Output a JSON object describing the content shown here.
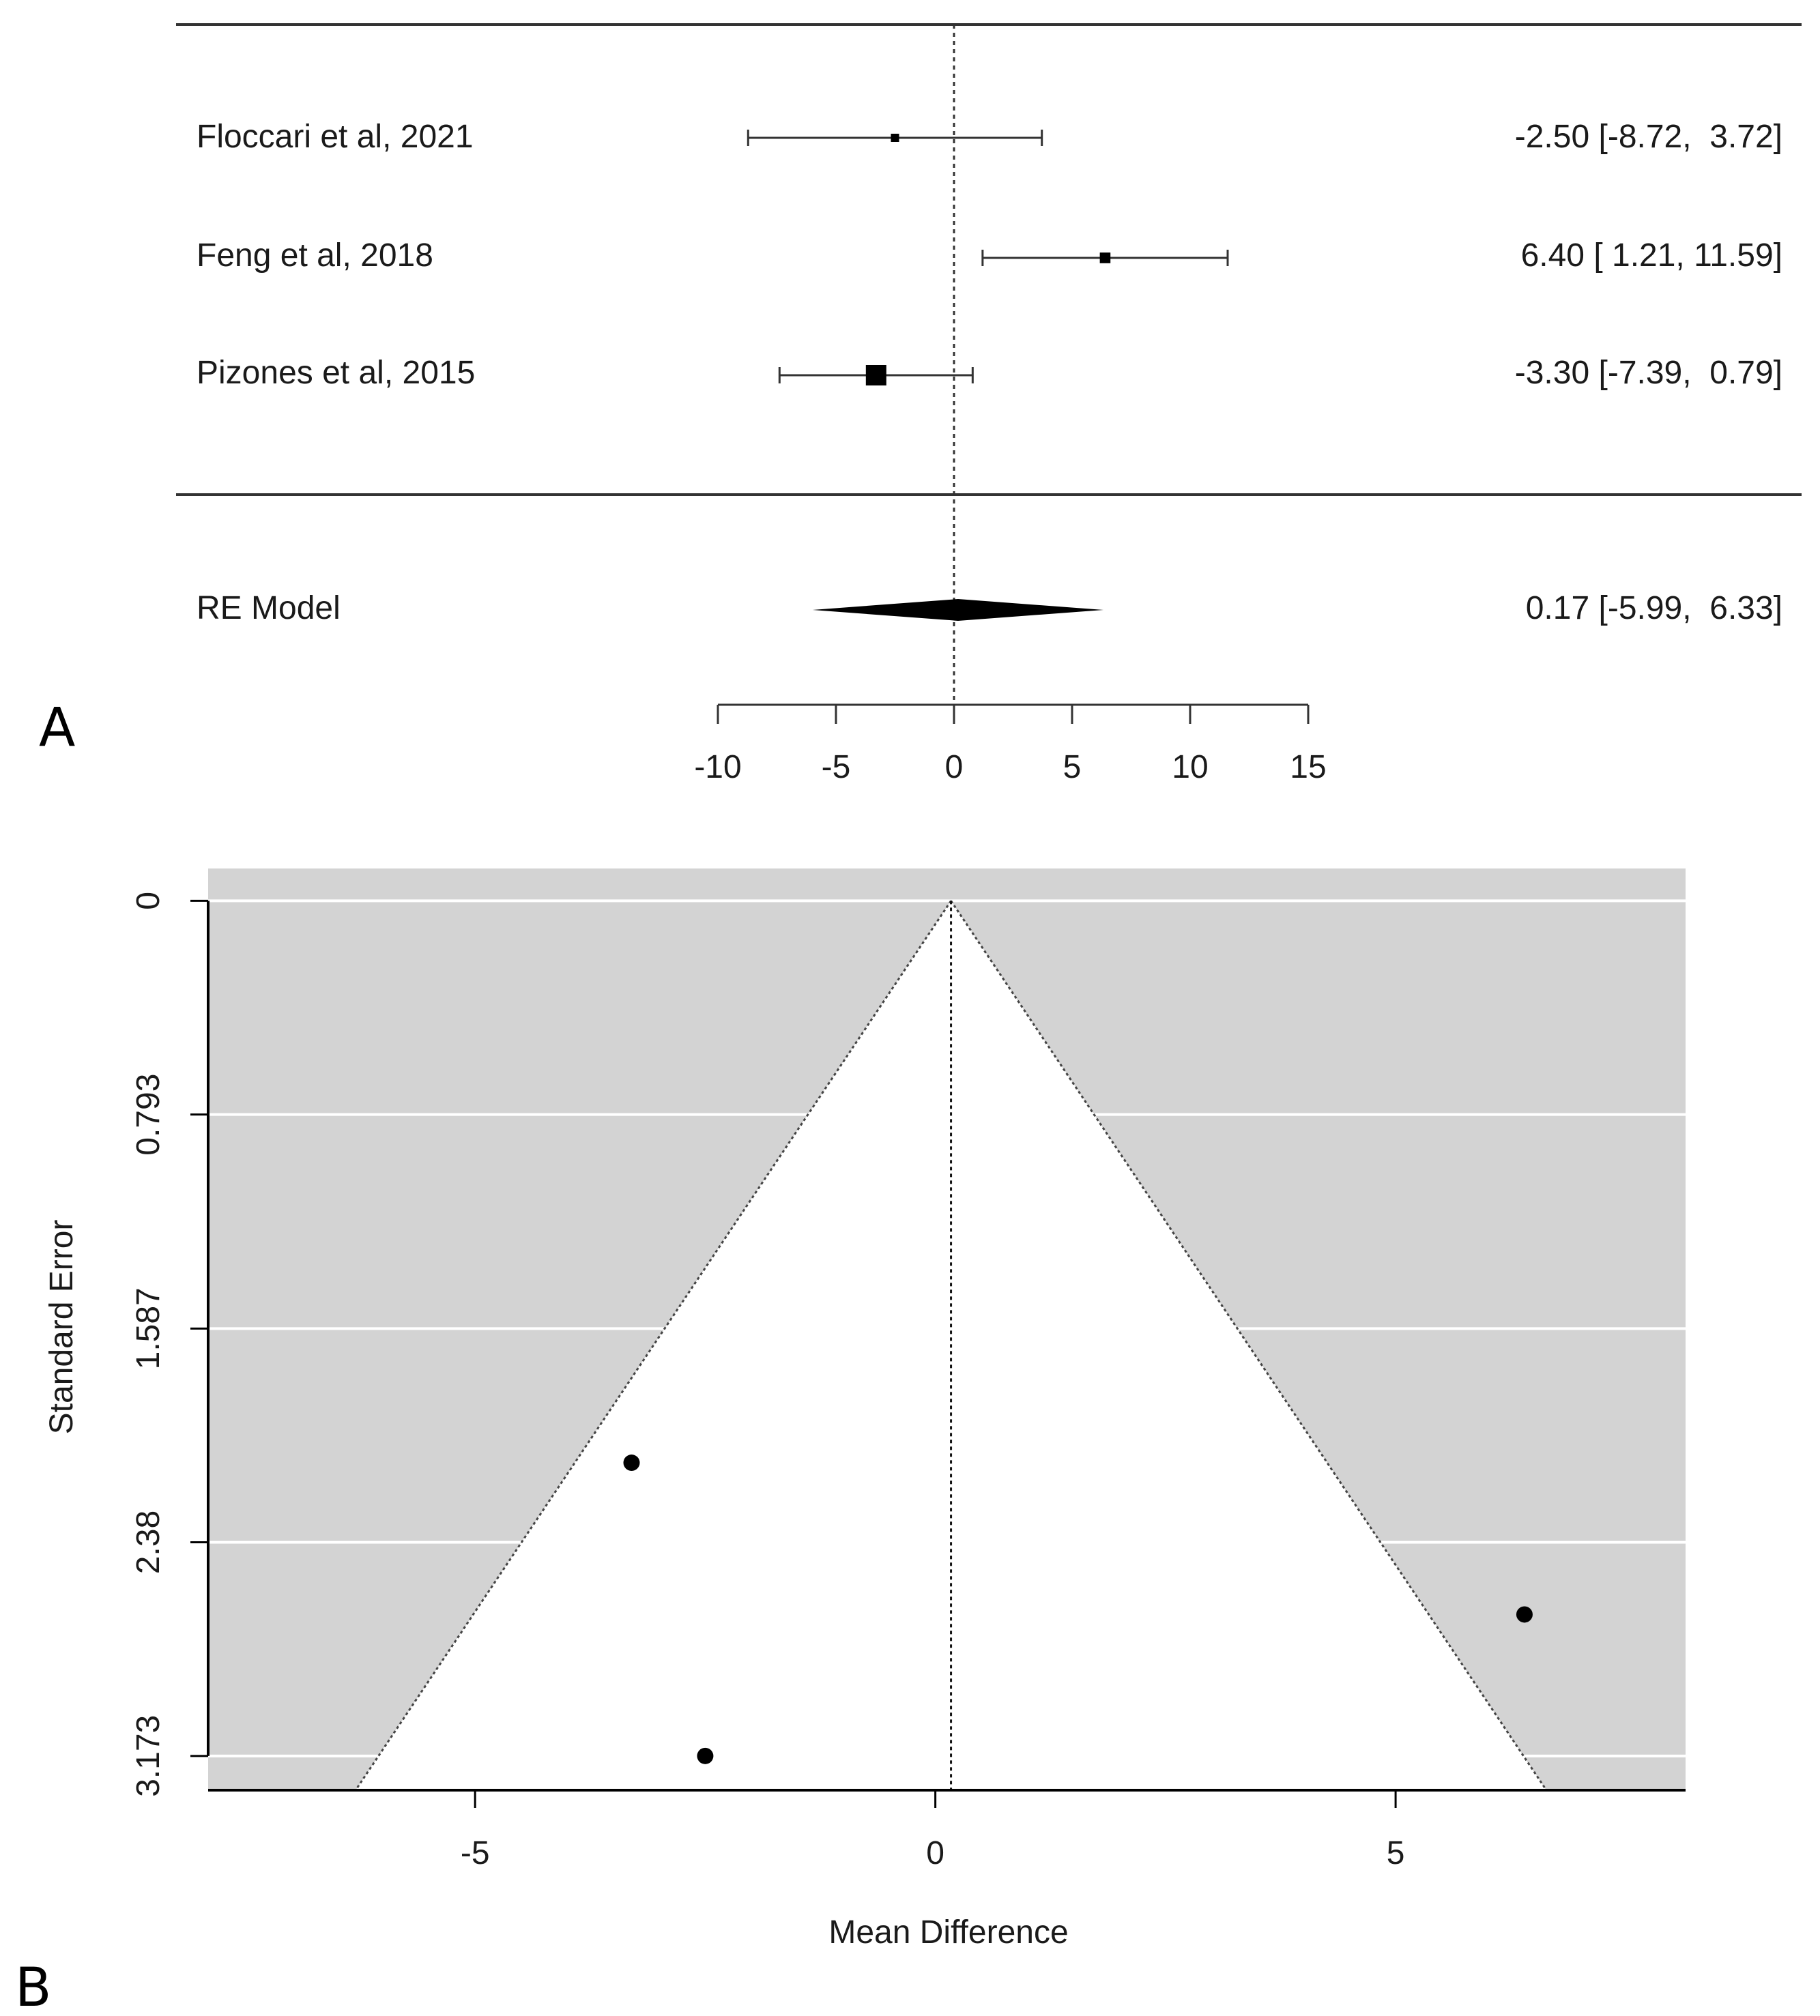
{
  "panels": {
    "a_label": "A",
    "b_label": "B"
  },
  "chart_data": [
    {
      "type": "forest",
      "panel": "A",
      "studies": [
        {
          "label": "Floccari et al, 2021",
          "estimate": -2.5,
          "lower": -8.72,
          "upper": 3.72,
          "ci_text": "-2.50 [-8.72,  3.72]",
          "weight": 1
        },
        {
          "label": "Feng et al, 2018",
          "estimate": 6.4,
          "lower": 1.21,
          "upper": 11.59,
          "ci_text": "6.40 [ 1.21, 11.59]",
          "weight": 1.3
        },
        {
          "label": "Pizones et al, 2015",
          "estimate": -3.3,
          "lower": -7.39,
          "upper": 0.79,
          "ci_text": "-3.30 [-7.39,  0.79]",
          "weight": 2.5
        }
      ],
      "summary": {
        "label": "RE Model",
        "estimate": 0.17,
        "lower": -5.99,
        "upper": 6.33,
        "ci_text": "0.17 [-5.99,  6.33]"
      },
      "xlim": [
        -10,
        15
      ],
      "ticks": [
        -10,
        -5,
        0,
        5,
        10,
        15
      ],
      "tick_labels": [
        "-10",
        "-5",
        "0",
        "5",
        "10",
        "15"
      ],
      "reference_line": 0
    },
    {
      "type": "scatter",
      "subtype": "funnel",
      "panel": "B",
      "xlabel": "Mean Difference",
      "ylabel": "Standard Error",
      "x_ticks": [
        -5,
        0,
        5
      ],
      "x_tick_labels": [
        "-5",
        "0",
        "5"
      ],
      "y_ticks": [
        0,
        0.793,
        1.587,
        2.38,
        3.173
      ],
      "y_tick_labels": [
        "0",
        "0.793",
        "1.587",
        "2.38",
        "3.173"
      ],
      "xlim": [
        -7.9,
        8.15
      ],
      "ylim": [
        3.3,
        -0.12
      ],
      "center": 0.17,
      "points": [
        {
          "x": -3.3,
          "y": 2.085
        },
        {
          "x": 6.4,
          "y": 2.648
        },
        {
          "x": -2.5,
          "y": 3.173
        }
      ],
      "colors": {
        "region": "#d3d3d3",
        "points": "#000000"
      }
    }
  ]
}
